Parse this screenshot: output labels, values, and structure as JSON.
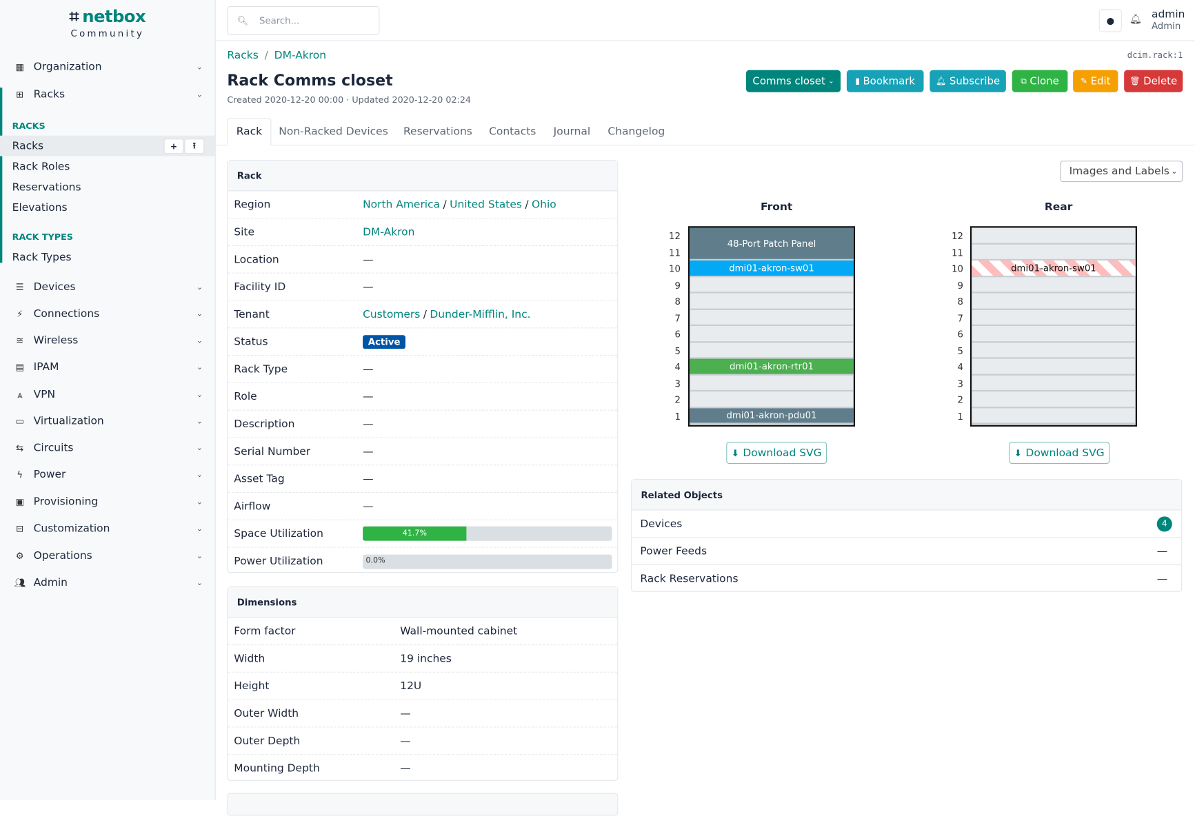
{
  "brand": {
    "name": "netbox",
    "edition": "Community"
  },
  "sidebar": {
    "top_items": [
      {
        "label": "Organization",
        "icon": "building-icon"
      },
      {
        "label": "Racks",
        "icon": "rack-icon"
      }
    ],
    "sections": [
      {
        "title": "RACKS",
        "items": [
          "Racks",
          "Rack Roles",
          "Reservations",
          "Elevations"
        ]
      },
      {
        "title": "RACK TYPES",
        "items": [
          "Rack Types"
        ]
      }
    ],
    "items": [
      {
        "label": "Devices",
        "icon": "server-icon"
      },
      {
        "label": "Connections",
        "icon": "plug-icon"
      },
      {
        "label": "Wireless",
        "icon": "wifi-icon"
      },
      {
        "label": "IPAM",
        "icon": "counter-icon"
      },
      {
        "label": "VPN",
        "icon": "vpn-icon"
      },
      {
        "label": "Virtualization",
        "icon": "monitor-icon"
      },
      {
        "label": "Circuits",
        "icon": "transit-icon"
      },
      {
        "label": "Power",
        "icon": "flash-icon"
      },
      {
        "label": "Provisioning",
        "icon": "file-document-icon"
      },
      {
        "label": "Customization",
        "icon": "toolbox-icon"
      },
      {
        "label": "Operations",
        "icon": "cogs-icon"
      },
      {
        "label": "Admin",
        "icon": "account-multiple-icon"
      }
    ]
  },
  "topbar": {
    "search_placeholder": "Search...",
    "user": "admin",
    "role": "Admin"
  },
  "breadcrumb": [
    "Racks",
    "DM-Akron"
  ],
  "object_id": "dcim.rack:1",
  "title": "Rack Comms closet",
  "meta": "Created 2020-12-20 00:00 · Updated 2020-12-20 02:24",
  "actions": {
    "dropdown": "Comms closet",
    "bookmark": "Bookmark",
    "subscribe": "Subscribe",
    "clone": "Clone",
    "edit": "Edit",
    "delete": "Delete"
  },
  "colors": {
    "primary": "#00857d",
    "info": "#17a2b8",
    "success": "#2fb344",
    "warning": "#f59f00",
    "danger": "#d63939"
  },
  "tabs": [
    "Rack",
    "Non-Racked Devices",
    "Reservations",
    "Contacts",
    "Journal",
    "Changelog"
  ],
  "rack_card": {
    "title": "Rack",
    "region": {
      "label": "Region",
      "parts": [
        "North America",
        "United States",
        "Ohio"
      ]
    },
    "site": {
      "label": "Site",
      "value": "DM-Akron"
    },
    "tenant": {
      "label": "Tenant",
      "parts": [
        "Customers",
        "Dunder-Mifflin, Inc."
      ]
    },
    "status": {
      "label": "Status",
      "value": "Active"
    },
    "rows": [
      {
        "label": "Location",
        "value": "—"
      },
      {
        "label": "Facility ID",
        "value": "—"
      },
      {
        "label": "Rack Type",
        "value": "—"
      },
      {
        "label": "Role",
        "value": "—"
      },
      {
        "label": "Description",
        "value": "—"
      },
      {
        "label": "Serial Number",
        "value": "—"
      },
      {
        "label": "Asset Tag",
        "value": "—"
      },
      {
        "label": "Airflow",
        "value": "—"
      }
    ],
    "space": {
      "label": "Space Utilization",
      "value": "41.7%",
      "percent": 41.7
    },
    "power": {
      "label": "Power Utilization",
      "value": "0.0%",
      "percent": 0
    }
  },
  "dimensions": {
    "title": "Dimensions",
    "rows": [
      {
        "label": "Form factor",
        "value": "Wall-mounted cabinet"
      },
      {
        "label": "Width",
        "value": "19 inches"
      },
      {
        "label": "Height",
        "value": "12U"
      },
      {
        "label": "Outer Width",
        "value": "—"
      },
      {
        "label": "Outer Depth",
        "value": "—"
      },
      {
        "label": "Mounting Depth",
        "value": "—"
      }
    ]
  },
  "elevation": {
    "view_select": "Images and Labels",
    "front_label": "Front",
    "rear_label": "Rear",
    "download": "Download SVG",
    "units": 12,
    "front_devices": [
      {
        "name": "48-Port Patch Panel",
        "top": 12,
        "height": 2,
        "color": "#607d8b"
      },
      {
        "name": "dmi01-akron-sw01",
        "top": 10,
        "height": 1,
        "color": "#03a9f4"
      },
      {
        "name": "dmi01-akron-rtr01",
        "top": 4,
        "height": 1,
        "color": "#4caf50"
      },
      {
        "name": "dmi01-akron-pdu01",
        "top": 1,
        "height": 1,
        "color": "#607d8b"
      }
    ],
    "rear_devices": [
      {
        "name": "dmi01-akron-sw01",
        "top": 10,
        "height": 1,
        "color": "#ffbcbc"
      }
    ]
  },
  "related": {
    "title": "Related Objects",
    "rows": [
      {
        "label": "Devices",
        "value": "4"
      },
      {
        "label": "Power Feeds",
        "value": "—"
      },
      {
        "label": "Rack Reservations",
        "value": "—"
      }
    ]
  }
}
